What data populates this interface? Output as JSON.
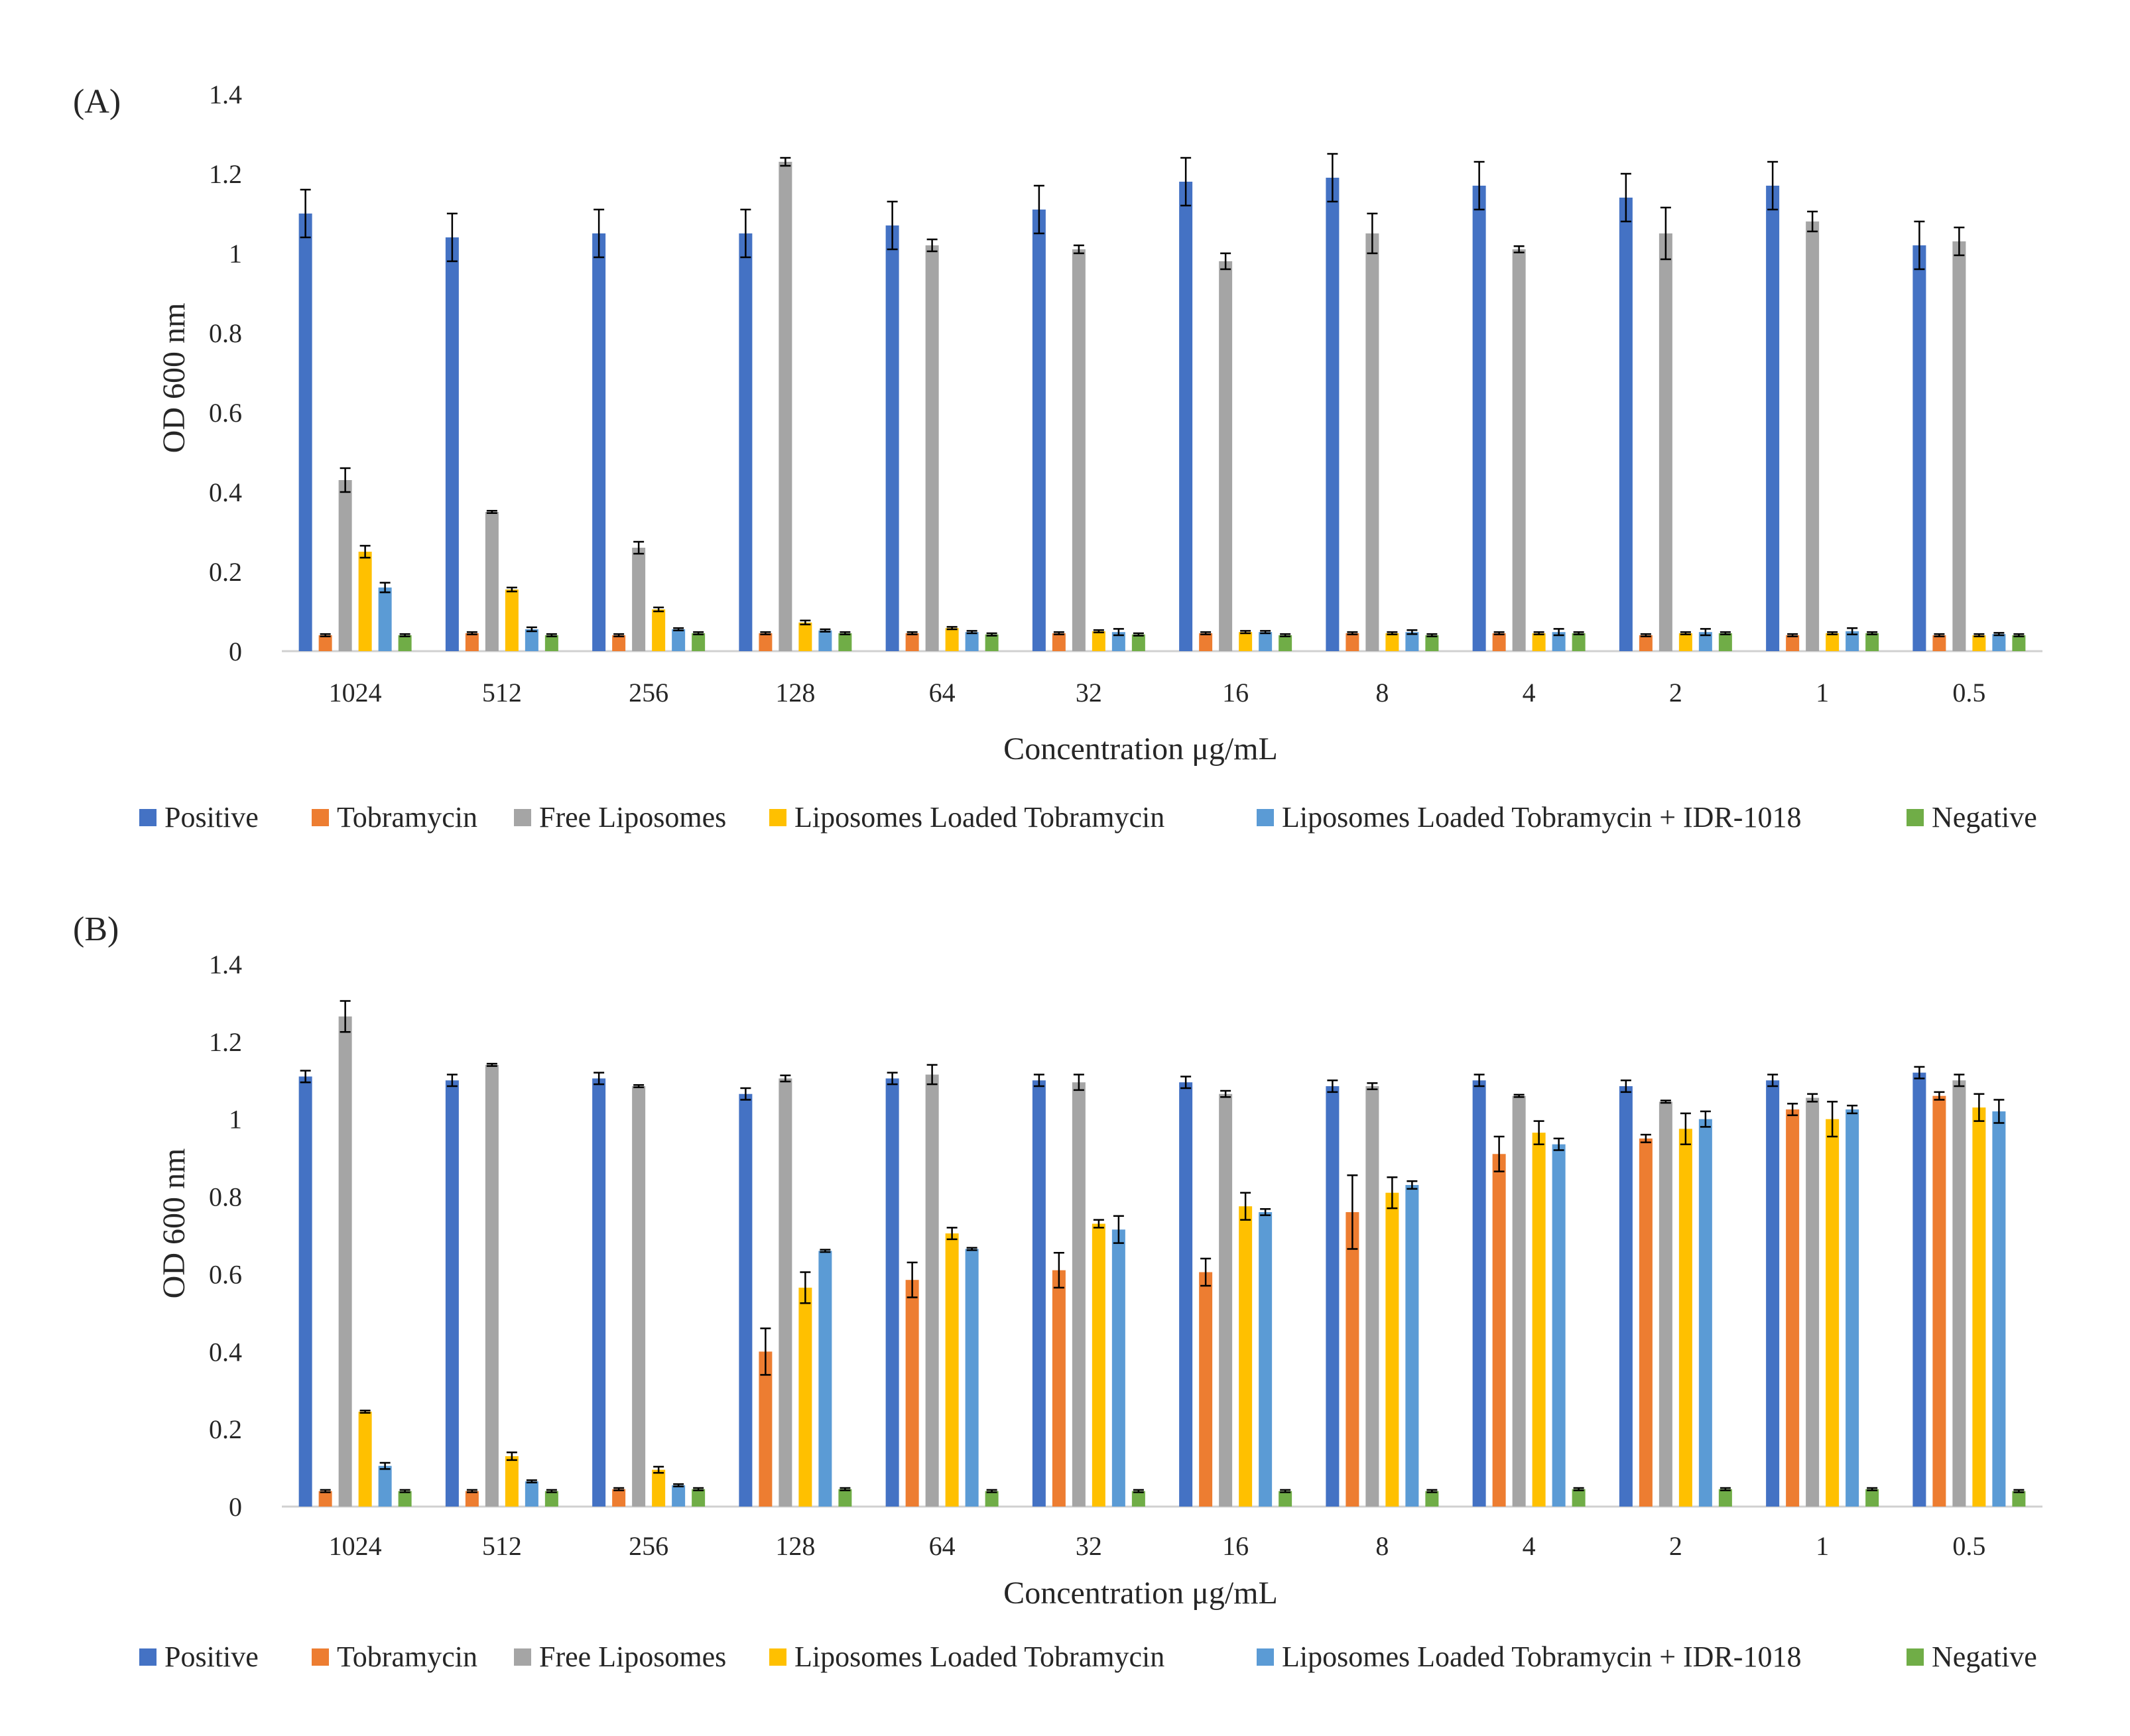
{
  "chart_data": [
    {
      "type": "bar",
      "panel_label": "(A)",
      "title": "",
      "xlabel": "Concentration μg/mL",
      "ylabel": "OD 600 nm",
      "ylim": [
        0,
        1.4
      ],
      "yticks": [
        0,
        0.2,
        0.4,
        0.6,
        0.8,
        1,
        1.2,
        1.4
      ],
      "ytick_labels": [
        "0",
        "0.2",
        "0.4",
        "0.6",
        "0.8",
        "1",
        "1.2",
        "1.4"
      ],
      "grid": false,
      "legend_position": "bottom",
      "categories": [
        "1024",
        "512",
        "256",
        "128",
        "64",
        "32",
        "16",
        "8",
        "4",
        "2",
        "1",
        "0.5"
      ],
      "series": [
        {
          "name": "Positive",
          "color": "#4472C4",
          "values": [
            1.1,
            1.04,
            1.05,
            1.05,
            1.07,
            1.11,
            1.18,
            1.19,
            1.17,
            1.14,
            1.17,
            1.02
          ],
          "errors": [
            0.06,
            0.06,
            0.06,
            0.06,
            0.06,
            0.06,
            0.06,
            0.06,
            0.06,
            0.06,
            0.06,
            0.06
          ]
        },
        {
          "name": "Tobramycin",
          "color": "#ED7D31",
          "values": [
            0.04,
            0.045,
            0.04,
            0.045,
            0.045,
            0.045,
            0.045,
            0.045,
            0.045,
            0.04,
            0.04,
            0.04
          ],
          "errors": [
            0.003,
            0.003,
            0.003,
            0.003,
            0.003,
            0.003,
            0.003,
            0.003,
            0.003,
            0.003,
            0.003,
            0.003
          ]
        },
        {
          "name": "Free Liposomes",
          "color": "#A5A5A5",
          "values": [
            0.43,
            0.35,
            0.26,
            1.23,
            1.02,
            1.01,
            0.98,
            1.05,
            1.01,
            1.05,
            1.08,
            1.03
          ],
          "errors": [
            0.03,
            0.003,
            0.015,
            0.01,
            0.015,
            0.01,
            0.02,
            0.05,
            0.008,
            0.065,
            0.025,
            0.035
          ]
        },
        {
          "name": "Liposomes Loaded Tobramycin",
          "color": "#FFC000",
          "values": [
            0.25,
            0.155,
            0.105,
            0.072,
            0.058,
            0.05,
            0.048,
            0.045,
            0.045,
            0.045,
            0.045,
            0.04
          ],
          "errors": [
            0.015,
            0.005,
            0.005,
            0.005,
            0.003,
            0.003,
            0.003,
            0.003,
            0.003,
            0.003,
            0.003,
            0.003
          ]
        },
        {
          "name": "Liposomes Loaded Tobramycin + IDR-1018",
          "color": "#5B9BD5",
          "values": [
            0.16,
            0.055,
            0.055,
            0.052,
            0.048,
            0.048,
            0.048,
            0.048,
            0.048,
            0.048,
            0.05,
            0.043
          ],
          "errors": [
            0.012,
            0.005,
            0.003,
            0.003,
            0.003,
            0.008,
            0.003,
            0.005,
            0.008,
            0.008,
            0.008,
            0.003
          ]
        },
        {
          "name": "Negative",
          "color": "#70AD47",
          "values": [
            0.04,
            0.04,
            0.045,
            0.045,
            0.042,
            0.042,
            0.04,
            0.04,
            0.045,
            0.045,
            0.045,
            0.04
          ],
          "errors": [
            0.003,
            0.003,
            0.003,
            0.003,
            0.003,
            0.003,
            0.003,
            0.003,
            0.003,
            0.003,
            0.003,
            0.003
          ]
        }
      ]
    },
    {
      "type": "bar",
      "panel_label": "(B)",
      "title": "",
      "xlabel": "Concentration μg/mL",
      "ylabel": "OD 600 nm",
      "ylim": [
        0,
        1.4
      ],
      "yticks": [
        0,
        0.2,
        0.4,
        0.6,
        0.8,
        1,
        1.2,
        1.4
      ],
      "ytick_labels": [
        "0",
        "0.2",
        "0.4",
        "0.6",
        "0.8",
        "1",
        "1.2",
        "1.4"
      ],
      "grid": false,
      "legend_position": "bottom",
      "categories": [
        "1024",
        "512",
        "256",
        "128",
        "64",
        "32",
        "16",
        "8",
        "4",
        "2",
        "1",
        "0.5"
      ],
      "series": [
        {
          "name": "Positive",
          "color": "#4472C4",
          "values": [
            1.11,
            1.1,
            1.105,
            1.065,
            1.105,
            1.1,
            1.095,
            1.085,
            1.1,
            1.085,
            1.1,
            1.12
          ],
          "errors": [
            0.015,
            0.015,
            0.015,
            0.015,
            0.015,
            0.015,
            0.015,
            0.015,
            0.015,
            0.015,
            0.015,
            0.015
          ]
        },
        {
          "name": "Tobramycin",
          "color": "#ED7D31",
          "values": [
            0.04,
            0.04,
            0.045,
            0.4,
            0.585,
            0.61,
            0.605,
            0.76,
            0.91,
            0.95,
            1.025,
            1.06
          ],
          "errors": [
            0.003,
            0.003,
            0.003,
            0.06,
            0.045,
            0.045,
            0.035,
            0.095,
            0.045,
            0.01,
            0.015,
            0.01
          ]
        },
        {
          "name": "Free Liposomes",
          "color": "#A5A5A5",
          "values": [
            1.265,
            1.14,
            1.085,
            1.105,
            1.115,
            1.095,
            1.065,
            1.085,
            1.06,
            1.045,
            1.055,
            1.1
          ],
          "errors": [
            0.04,
            0.003,
            0.003,
            0.008,
            0.025,
            0.02,
            0.008,
            0.008,
            0.003,
            0.003,
            0.01,
            0.015
          ]
        },
        {
          "name": "Liposomes Loaded Tobramycin",
          "color": "#FFC000",
          "values": [
            0.245,
            0.13,
            0.095,
            0.565,
            0.705,
            0.73,
            0.775,
            0.81,
            0.965,
            0.975,
            1.0,
            1.03
          ],
          "errors": [
            0.003,
            0.01,
            0.008,
            0.04,
            0.015,
            0.01,
            0.035,
            0.04,
            0.03,
            0.04,
            0.045,
            0.035
          ]
        },
        {
          "name": "Liposomes Loaded Tobramycin + IDR-1018",
          "color": "#5B9BD5",
          "values": [
            0.105,
            0.065,
            0.055,
            0.66,
            0.665,
            0.715,
            0.76,
            0.83,
            0.935,
            1.0,
            1.025,
            1.02
          ],
          "errors": [
            0.008,
            0.003,
            0.003,
            0.003,
            0.003,
            0.035,
            0.008,
            0.01,
            0.015,
            0.02,
            0.01,
            0.03
          ]
        },
        {
          "name": "Negative",
          "color": "#70AD47",
          "values": [
            0.04,
            0.04,
            0.045,
            0.045,
            0.04,
            0.04,
            0.04,
            0.04,
            0.045,
            0.045,
            0.045,
            0.04
          ],
          "errors": [
            0.003,
            0.003,
            0.003,
            0.003,
            0.003,
            0.003,
            0.003,
            0.003,
            0.003,
            0.003,
            0.003,
            0.003
          ]
        }
      ]
    }
  ]
}
